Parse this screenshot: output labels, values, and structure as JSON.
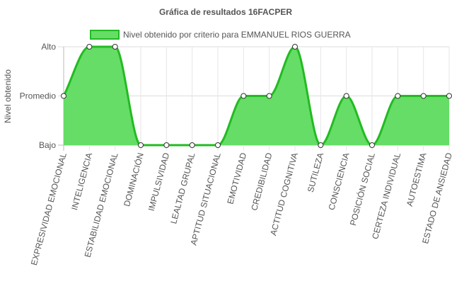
{
  "chart_data": {
    "type": "area",
    "title": "Gráfica de resultados 16FACPER",
    "ylabel": "Nivel obtenido",
    "xlabel": "",
    "y_categories": [
      "Bajo",
      "Promedio",
      "Alto"
    ],
    "categories": [
      "EXPRESIVIDAD EMOCIONAL",
      "INTELIGENCIA",
      "ESTABILIDAD EMOCIONAL",
      "DOMINACIÓN",
      "IMPULSIVIDAD",
      "LEALTAD GRUPAL",
      "APTITUD SITUACIONAL",
      "EMOTIVIDAD",
      "CREDIBILIDAD",
      "ACTITUD COGNITIVA",
      "SUTILEZA",
      "CONSCIENCIA",
      "POSICIÓN SOCIAL",
      "CERTEZA INDIVIDUAL",
      "AUTOESTIMA",
      "ESTADO DE ANSIEDAD"
    ],
    "series": [
      {
        "name": "Nivel obtenido por criterio para EMMANUEL RIOS GUERRA",
        "values": [
          "Promedio",
          "Alto",
          "Alto",
          "Bajo",
          "Bajo",
          "Bajo",
          "Bajo",
          "Promedio",
          "Promedio",
          "Alto",
          "Bajo",
          "Promedio",
          "Bajo",
          "Promedio",
          "Promedio",
          "Promedio"
        ],
        "fill_color": "#66dd66",
        "line_color": "#22bb22"
      }
    ],
    "legend": "top",
    "grid": true
  }
}
